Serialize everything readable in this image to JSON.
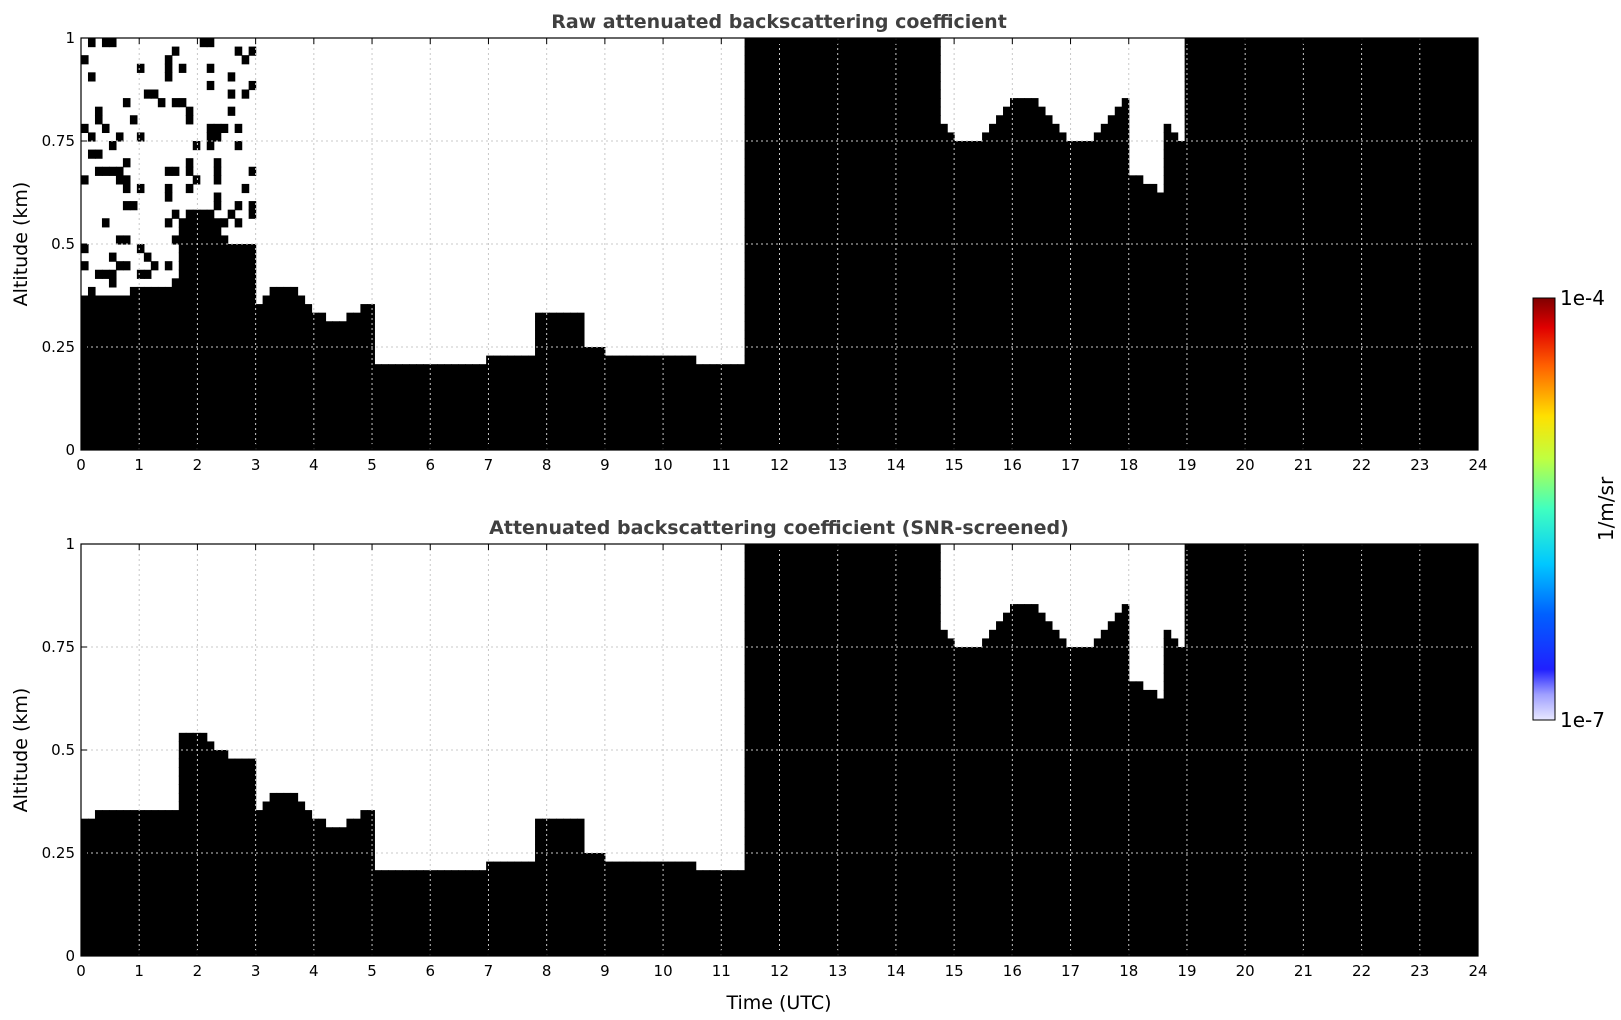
{
  "chart_data": [
    {
      "type": "heatmap",
      "title": "Raw attenuated backscattering coefficient",
      "xlabel": "",
      "ylabel": "Altitude (km)",
      "xlim": [
        0,
        24
      ],
      "ylim": [
        0,
        1
      ],
      "xticks": [
        "0",
        "1",
        "2",
        "3",
        "4",
        "5",
        "6",
        "7",
        "8",
        "9",
        "10",
        "11",
        "12",
        "13",
        "14",
        "15",
        "16",
        "17",
        "18",
        "19",
        "20",
        "21",
        "22",
        "23",
        "24"
      ],
      "yticks": [
        "0",
        "0.25",
        "0.5",
        "0.75",
        "1"
      ],
      "grid": true,
      "screened": false
    },
    {
      "type": "heatmap",
      "title": "Attenuated backscattering coefficient (SNR-screened)",
      "xlabel": "Time (UTC)",
      "ylabel": "Altitude (km)",
      "xlim": [
        0,
        24
      ],
      "ylim": [
        0,
        1
      ],
      "xticks": [
        "0",
        "1",
        "2",
        "3",
        "4",
        "5",
        "6",
        "7",
        "8",
        "9",
        "10",
        "11",
        "12",
        "13",
        "14",
        "15",
        "16",
        "17",
        "18",
        "19",
        "20",
        "21",
        "22",
        "23",
        "24"
      ],
      "yticks": [
        "0",
        "0.25",
        "0.5",
        "0.75",
        "1"
      ],
      "grid": true,
      "screened": true
    }
  ],
  "colorbar": {
    "label": "1/m/sr",
    "max_label": "1e-4",
    "min_label": "1e-7",
    "scale": "log",
    "colormap": "jet"
  }
}
